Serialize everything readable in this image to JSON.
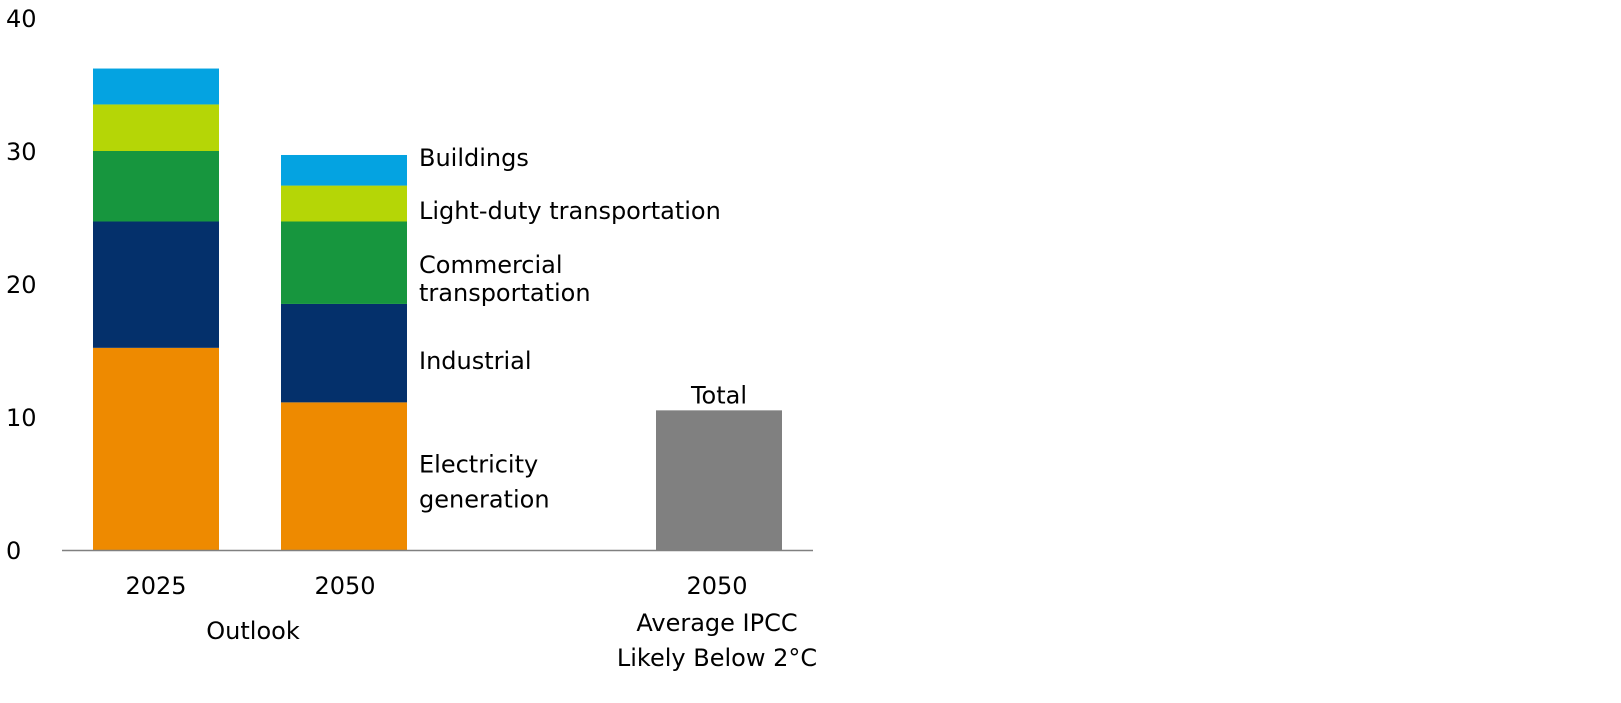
{
  "chart_data": {
    "type": "bar",
    "stacked": true,
    "title": "",
    "xlabel": "",
    "ylabel": "",
    "ylim": [
      0,
      40
    ],
    "yticks": [
      "0",
      "10",
      "20",
      "30",
      "40"
    ],
    "grid": false,
    "legend_placement": "right of 2050 Outlook bar",
    "bars": [
      {
        "label": "2025",
        "group": "Outlook"
      },
      {
        "label": "2050",
        "group": "Outlook"
      },
      {
        "label": "2050",
        "group": "Average IPCC Likely Below 2°C"
      }
    ],
    "group_labels": {
      "outlook": "Outlook",
      "ipcc_line1": "Average IPCC",
      "ipcc_line2": "Likely Below 2°C"
    },
    "series": [
      {
        "name": "Electricity generation",
        "label_lines": [
          "Electricity",
          "generation"
        ],
        "color": "#EE8A00",
        "values": [
          15.2,
          11.1,
          null
        ]
      },
      {
        "name": "Industrial",
        "label_lines": [
          "Industrial"
        ],
        "color": "#04306B",
        "values": [
          9.5,
          7.4,
          null
        ]
      },
      {
        "name": "Commercial transportation",
        "label_lines": [
          "Commercial",
          "transportation"
        ],
        "color": "#17963E",
        "values": [
          5.3,
          6.2,
          null
        ]
      },
      {
        "name": "Light-duty transportation",
        "label_lines": [
          "Light-duty transportation"
        ],
        "color": "#B5D606",
        "values": [
          3.5,
          2.7,
          null
        ]
      },
      {
        "name": "Buildings",
        "label_lines": [
          "Buildings"
        ],
        "color": "#04A3E1",
        "values": [
          2.7,
          2.3,
          null
        ]
      },
      {
        "name": "Total",
        "label_lines": [
          "Total"
        ],
        "color": "#808080",
        "values": [
          null,
          null,
          10.5
        ]
      }
    ],
    "axis_color": "#808080"
  }
}
